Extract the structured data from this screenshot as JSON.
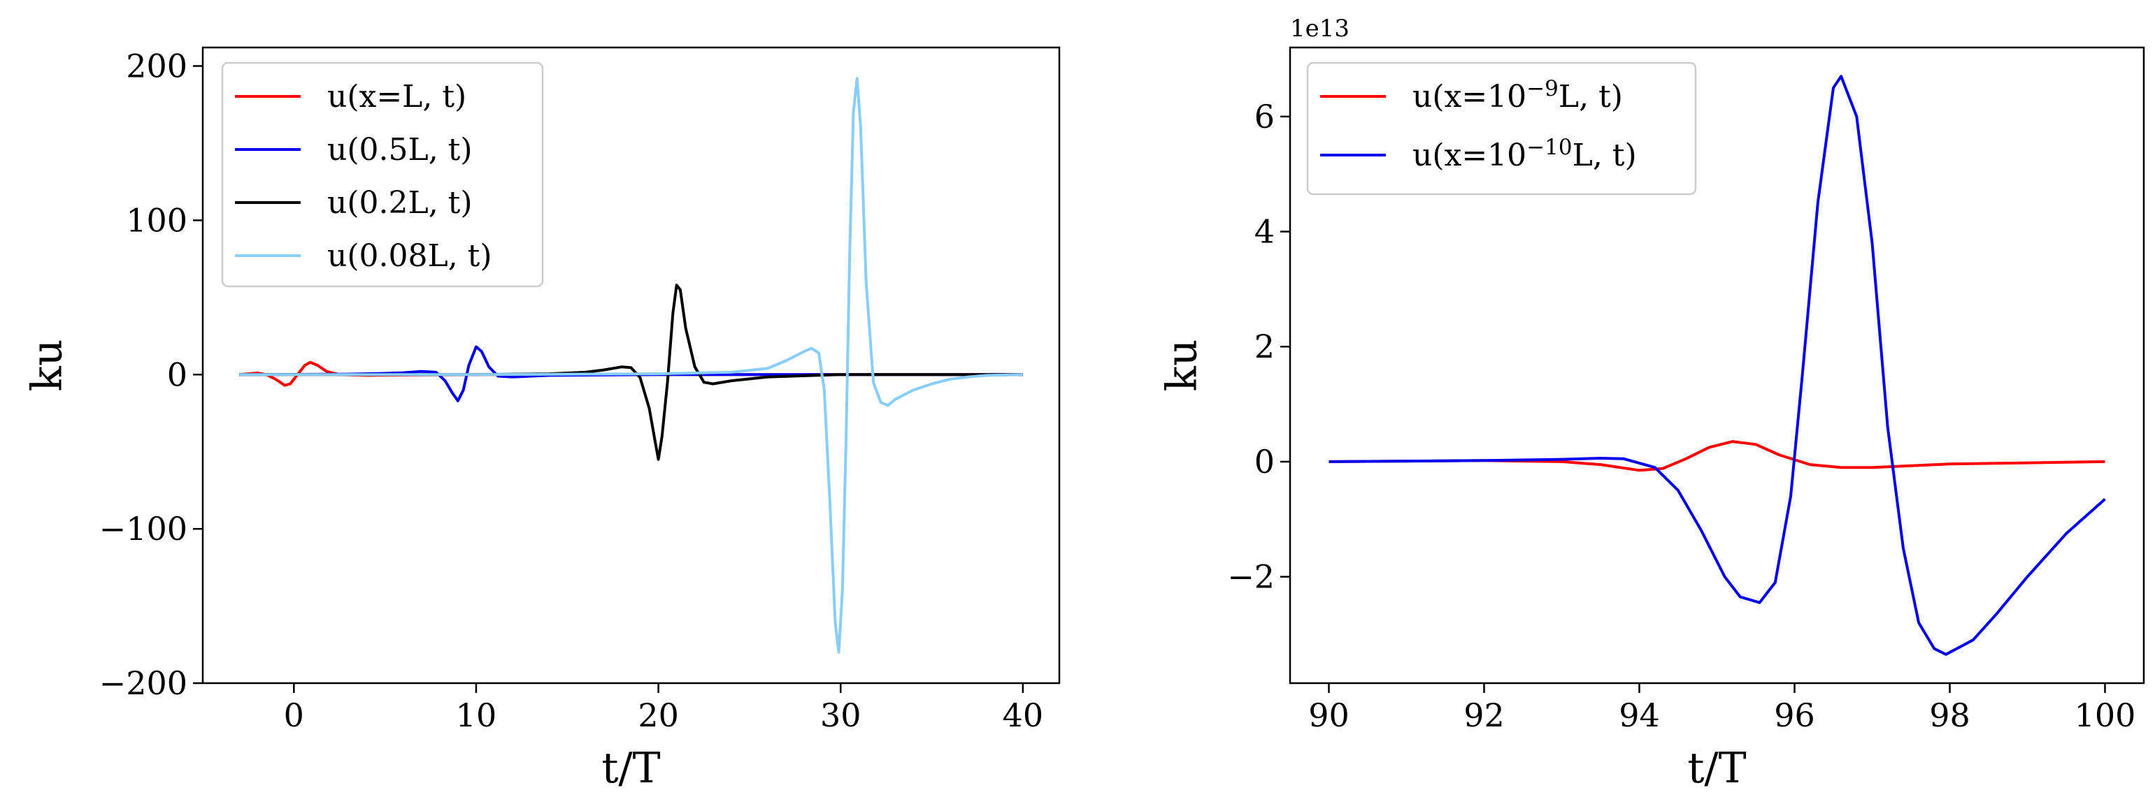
{
  "chart_data": [
    {
      "type": "line",
      "xlabel": "t/T",
      "ylabel": "ku",
      "xlim": [
        -5,
        42
      ],
      "ylim": [
        -200,
        212
      ],
      "xticks": [
        0,
        10,
        20,
        30,
        40
      ],
      "yticks": [
        -200,
        -100,
        0,
        100,
        200
      ],
      "ytick_labels": [
        "−200",
        "−100",
        "0",
        "100",
        "200"
      ],
      "grid": false,
      "legend_position": "upper-left",
      "series": [
        {
          "name": "u(x=L, t)",
          "color": "#ff0000",
          "points": [
            [
              -3,
              0
            ],
            [
              -2.5,
              0.5
            ],
            [
              -2,
              1
            ],
            [
              -1.5,
              0
            ],
            [
              -1,
              -3
            ],
            [
              -0.5,
              -7
            ],
            [
              -0.2,
              -6
            ],
            [
              0.2,
              0
            ],
            [
              0.6,
              6
            ],
            [
              0.9,
              8
            ],
            [
              1.3,
              6
            ],
            [
              1.8,
              2
            ],
            [
              2.5,
              0
            ],
            [
              4,
              -0.5
            ],
            [
              6,
              -0.3
            ],
            [
              10,
              0
            ],
            [
              20,
              0
            ],
            [
              30,
              0
            ],
            [
              40,
              0
            ]
          ]
        },
        {
          "name": "u(0.5L, t)",
          "color": "#0000ee",
          "points": [
            [
              -3,
              0
            ],
            [
              3,
              0.3
            ],
            [
              5,
              0.8
            ],
            [
              6,
              1.2
            ],
            [
              7,
              2
            ],
            [
              7.8,
              1.5
            ],
            [
              8.3,
              -4
            ],
            [
              8.7,
              -12
            ],
            [
              9,
              -17
            ],
            [
              9.3,
              -10
            ],
            [
              9.6,
              6
            ],
            [
              10,
              18
            ],
            [
              10.3,
              15
            ],
            [
              10.7,
              5
            ],
            [
              11.2,
              -1
            ],
            [
              12,
              -1.5
            ],
            [
              14,
              -0.5
            ],
            [
              20,
              0
            ],
            [
              30,
              0
            ],
            [
              40,
              0
            ]
          ]
        },
        {
          "name": "u(0.2L, t)",
          "color": "#000000",
          "points": [
            [
              -3,
              0
            ],
            [
              10,
              0
            ],
            [
              14,
              0.5
            ],
            [
              16,
              1.5
            ],
            [
              17,
              3
            ],
            [
              18,
              5
            ],
            [
              18.5,
              4.5
            ],
            [
              19,
              -2
            ],
            [
              19.5,
              -22
            ],
            [
              19.8,
              -42
            ],
            [
              20,
              -55
            ],
            [
              20.2,
              -40
            ],
            [
              20.5,
              -5
            ],
            [
              20.8,
              40
            ],
            [
              21,
              58
            ],
            [
              21.2,
              55
            ],
            [
              21.5,
              30
            ],
            [
              22,
              5
            ],
            [
              22.5,
              -5
            ],
            [
              23,
              -6
            ],
            [
              24,
              -4
            ],
            [
              26,
              -1.5
            ],
            [
              30,
              0
            ],
            [
              40,
              0
            ]
          ]
        },
        {
          "name": "u(0.08L, t)",
          "color": "#87cefa",
          "points": [
            [
              -3,
              0
            ],
            [
              10,
              0
            ],
            [
              20,
              0.5
            ],
            [
              24,
              1.5
            ],
            [
              26,
              4
            ],
            [
              27,
              9
            ],
            [
              28,
              15
            ],
            [
              28.4,
              17
            ],
            [
              28.8,
              14
            ],
            [
              29.1,
              -10
            ],
            [
              29.4,
              -80
            ],
            [
              29.7,
              -160
            ],
            [
              29.9,
              -180
            ],
            [
              30.1,
              -140
            ],
            [
              30.3,
              -40
            ],
            [
              30.5,
              80
            ],
            [
              30.7,
              170
            ],
            [
              30.9,
              192
            ],
            [
              31.1,
              160
            ],
            [
              31.4,
              60
            ],
            [
              31.8,
              -5
            ],
            [
              32.2,
              -18
            ],
            [
              32.6,
              -20
            ],
            [
              33,
              -16
            ],
            [
              34,
              -10
            ],
            [
              35,
              -6
            ],
            [
              36,
              -3
            ],
            [
              37,
              -1.5
            ],
            [
              38,
              -0.5
            ],
            [
              40,
              0
            ]
          ]
        }
      ]
    },
    {
      "type": "line",
      "xlabel": "t/T",
      "ylabel": "ku",
      "offset_text": "1e13",
      "xlim": [
        89.5,
        100.5
      ],
      "ylim": [
        -3.85,
        7.2
      ],
      "xticks": [
        90,
        92,
        94,
        96,
        98,
        100
      ],
      "yticks": [
        -2,
        0,
        2,
        4,
        6
      ],
      "ytick_labels": [
        "−2",
        "0",
        "2",
        "4",
        "6"
      ],
      "grid": false,
      "legend_position": "upper-left",
      "series": [
        {
          "name_base": "u(x=10",
          "name_exp": "−9",
          "name_tail": "L, t)",
          "color": "#ff0000",
          "points": [
            [
              90,
              0
            ],
            [
              91,
              0.01
            ],
            [
              92,
              0.02
            ],
            [
              93,
              0
            ],
            [
              93.5,
              -0.05
            ],
            [
              94,
              -0.15
            ],
            [
              94.3,
              -0.12
            ],
            [
              94.6,
              0.05
            ],
            [
              94.9,
              0.25
            ],
            [
              95.2,
              0.35
            ],
            [
              95.5,
              0.3
            ],
            [
              95.8,
              0.12
            ],
            [
              96.2,
              -0.05
            ],
            [
              96.6,
              -0.1
            ],
            [
              97,
              -0.1
            ],
            [
              97.5,
              -0.07
            ],
            [
              98,
              -0.04
            ],
            [
              99,
              -0.02
            ],
            [
              100,
              0
            ]
          ]
        },
        {
          "name_base": "u(x=10",
          "name_exp": "−10",
          "name_tail": "L, t)",
          "color": "#0000ee",
          "points": [
            [
              90,
              0
            ],
            [
              91,
              0.01
            ],
            [
              92,
              0.02
            ],
            [
              93,
              0.04
            ],
            [
              93.5,
              0.06
            ],
            [
              93.8,
              0.05
            ],
            [
              94.2,
              -0.1
            ],
            [
              94.5,
              -0.5
            ],
            [
              94.8,
              -1.2
            ],
            [
              95.1,
              -2
            ],
            [
              95.3,
              -2.35
            ],
            [
              95.55,
              -2.45
            ],
            [
              95.75,
              -2.1
            ],
            [
              95.95,
              -0.6
            ],
            [
              96.1,
              1.5
            ],
            [
              96.3,
              4.5
            ],
            [
              96.5,
              6.5
            ],
            [
              96.6,
              6.7
            ],
            [
              96.8,
              6.0
            ],
            [
              97,
              3.8
            ],
            [
              97.2,
              0.6
            ],
            [
              97.4,
              -1.5
            ],
            [
              97.6,
              -2.8
            ],
            [
              97.8,
              -3.25
            ],
            [
              97.95,
              -3.35
            ],
            [
              98.3,
              -3.1
            ],
            [
              98.6,
              -2.65
            ],
            [
              99,
              -2.0
            ],
            [
              99.5,
              -1.25
            ],
            [
              100,
              -0.65
            ]
          ]
        }
      ]
    }
  ]
}
